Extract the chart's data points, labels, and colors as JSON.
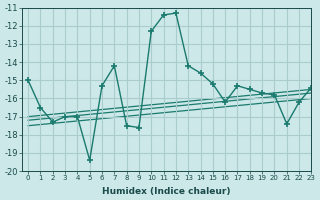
{
  "xlabel": "Humidex (Indice chaleur)",
  "ylabel": "",
  "background_color": "#cce8e8",
  "grid_color": "#aacccc",
  "line_color": "#1a7a6e",
  "xlim": [
    -0.5,
    23
  ],
  "ylim": [
    -20,
    -11
  ],
  "xticks": [
    0,
    1,
    2,
    3,
    4,
    5,
    6,
    7,
    8,
    9,
    10,
    11,
    12,
    13,
    14,
    15,
    16,
    17,
    18,
    19,
    20,
    21,
    22,
    23
  ],
  "yticks": [
    -20,
    -19,
    -18,
    -17,
    -16,
    -15,
    -14,
    -13,
    -12,
    -11
  ],
  "main_line": {
    "x": [
      0,
      1,
      2,
      3,
      4,
      5,
      6,
      7,
      8,
      9,
      10,
      11,
      12,
      13,
      14,
      15,
      16,
      17,
      18,
      19,
      20,
      21,
      22,
      23
    ],
    "y": [
      -15.0,
      -16.5,
      -17.3,
      -17.0,
      -17.0,
      -19.4,
      -15.3,
      -14.2,
      -17.5,
      -17.6,
      -12.3,
      -11.4,
      -11.3,
      -14.2,
      -14.6,
      -15.2,
      -16.2,
      -15.3,
      -15.5,
      -15.7,
      -15.8,
      -17.4,
      -16.2,
      -15.4
    ]
  },
  "regression_lines": [
    {
      "x": [
        0,
        23
      ],
      "y": [
        -17.0,
        -15.5
      ]
    },
    {
      "x": [
        0,
        23
      ],
      "y": [
        -17.2,
        -15.7
      ]
    },
    {
      "x": [
        0,
        23
      ],
      "y": [
        -17.5,
        -16.0
      ]
    }
  ]
}
